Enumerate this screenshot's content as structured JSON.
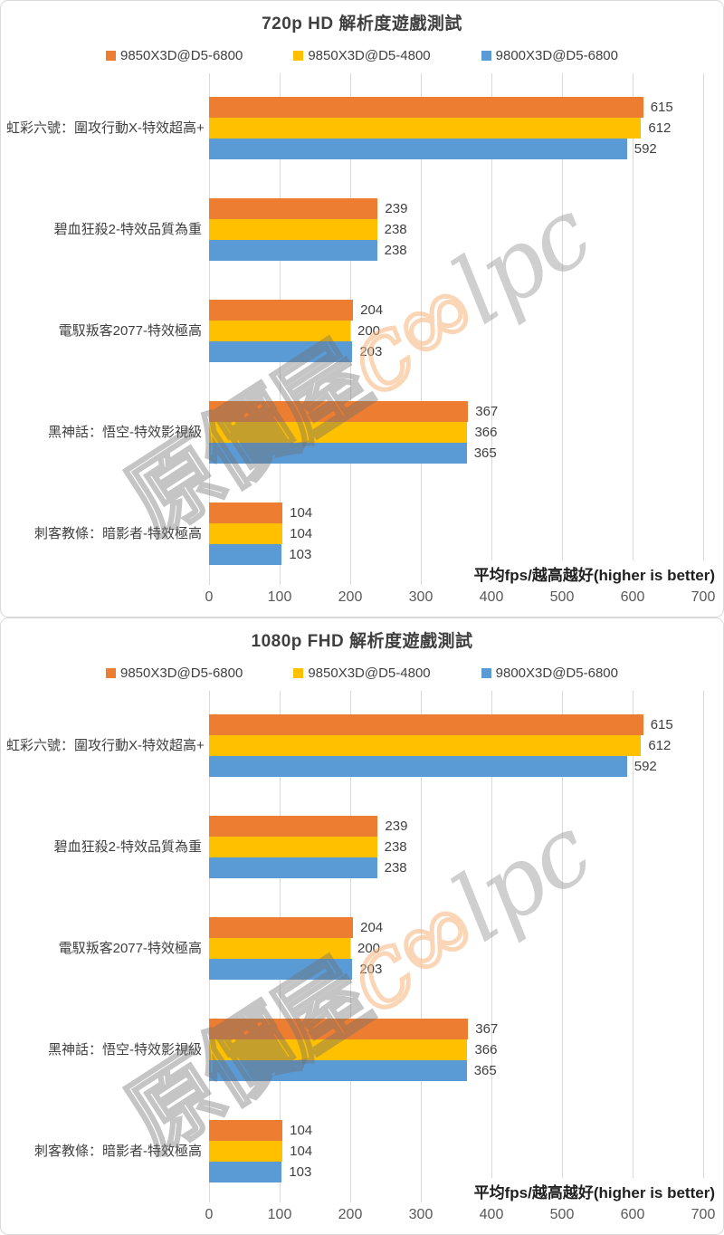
{
  "page": {
    "background": "#ffffff"
  },
  "colors": {
    "grid": "#d9d9d9",
    "title_text": "#3f3f3f",
    "label_text": "#404040",
    "tick_text": "#595959",
    "note_text": "#1f1f1f",
    "series_orange": "#ED7D31",
    "series_gold": "#FFC000",
    "series_blue": "#5B9BD5"
  },
  "watermark": {
    "text_cjk": "原價屋",
    "text_orange": "c∞",
    "text_latin": "lpc"
  },
  "chart_data": [
    {
      "type": "bar",
      "orientation": "horizontal",
      "title": "720p HD 解析度遊戲測試",
      "xlabel": "平均fps/越高越好(higher is better)",
      "xlim": [
        0,
        700
      ],
      "xticks": [
        0,
        100,
        200,
        300,
        400,
        500,
        600,
        700
      ],
      "grid": true,
      "legend_position": "top",
      "categories": [
        "虹彩六號：圍攻行動X-特效超高+",
        "碧血狂殺2-特效品質為重",
        "電馭叛客2077-特效極高",
        "黑神話：悟空-特效影視級",
        "刺客教條：暗影者-特效極高"
      ],
      "series": [
        {
          "name": "9850X3D@D5-6800",
          "color": "#ED7D31",
          "values": [
            615,
            239,
            204,
            367,
            104
          ]
        },
        {
          "name": "9850X3D@D5-4800",
          "color": "#FFC000",
          "values": [
            612,
            238,
            200,
            366,
            104
          ]
        },
        {
          "name": "9800X3D@D5-6800",
          "color": "#5B9BD5",
          "values": [
            592,
            238,
            203,
            365,
            103
          ]
        }
      ]
    },
    {
      "type": "bar",
      "orientation": "horizontal",
      "title": "1080p FHD 解析度遊戲測試",
      "xlabel": "平均fps/越高越好(higher is better)",
      "xlim": [
        0,
        700
      ],
      "xticks": [
        0,
        100,
        200,
        300,
        400,
        500,
        600,
        700
      ],
      "grid": true,
      "legend_position": "top",
      "categories": [
        "虹彩六號：圍攻行動X-特效超高+",
        "碧血狂殺2-特效品質為重",
        "電馭叛客2077-特效極高",
        "黑神話：悟空-特效影視級",
        "刺客教條：暗影者-特效極高"
      ],
      "series": [
        {
          "name": "9850X3D@D5-6800",
          "color": "#ED7D31",
          "values": [
            615,
            239,
            204,
            367,
            104
          ]
        },
        {
          "name": "9850X3D@D5-4800",
          "color": "#FFC000",
          "values": [
            612,
            238,
            200,
            366,
            104
          ]
        },
        {
          "name": "9800X3D@D5-6800",
          "color": "#5B9BD5",
          "values": [
            592,
            238,
            203,
            365,
            103
          ]
        }
      ]
    }
  ]
}
